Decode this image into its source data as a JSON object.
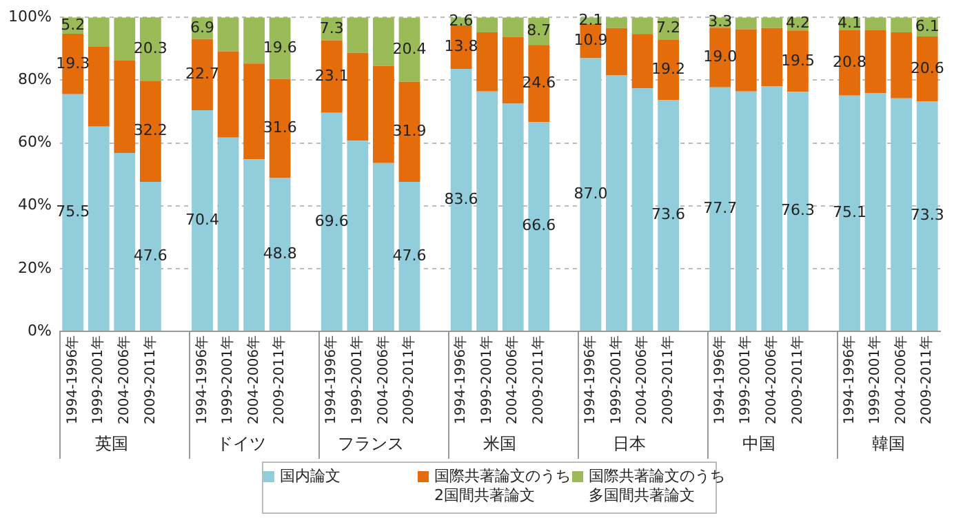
{
  "chart_data": {
    "type": "bar",
    "stacked": true,
    "categories": [
      "1994-1996年",
      "1999-2001年",
      "2004-2006年",
      "2009-2011年",
      null,
      "1994-1996年",
      "1999-2001年",
      "2004-2006年",
      "2009-2011年",
      null,
      "1994-1996年",
      "1999-2001年",
      "2004-2006年",
      "2009-2011年",
      null,
      "1994-1996年",
      "1999-2001年",
      "2004-2006年",
      "2009-2011年",
      null,
      "1994-1996年",
      "1999-2001年",
      "2004-2006年",
      "2009-2011年",
      null,
      "1994-1996年",
      "1999-2001年",
      "2004-2006年",
      "2009-2011年",
      null,
      "1994-1996年",
      "1999-2001年",
      "2004-2006年",
      "2009-2011年"
    ],
    "series": [
      {
        "name": "国内論文",
        "color": "#92cddc",
        "values": [
          75.5,
          65.2,
          56.8,
          47.6,
          null,
          70.4,
          61.7,
          54.8,
          48.8,
          null,
          69.6,
          60.7,
          53.6,
          47.6,
          null,
          83.6,
          76.4,
          72.5,
          66.6,
          null,
          87.0,
          81.6,
          77.4,
          73.6,
          null,
          77.7,
          76.4,
          78.1,
          76.3,
          null,
          75.1,
          75.9,
          74.2,
          73.3
        ],
        "value_labels": [
          "75.5",
          null,
          null,
          "47.6",
          null,
          "70.4",
          null,
          null,
          "48.8",
          null,
          "69.6",
          null,
          null,
          "47.6",
          null,
          "83.6",
          null,
          null,
          "66.6",
          null,
          "87.0",
          null,
          null,
          "73.6",
          null,
          "77.7",
          null,
          null,
          "76.3",
          null,
          "75.1",
          null,
          null,
          "73.3"
        ]
      },
      {
        "name": "国際共著論文のうち2国間共著論文",
        "color": "#e46c0a",
        "values": [
          19.3,
          25.4,
          29.4,
          32.2,
          null,
          22.7,
          27.5,
          30.5,
          31.6,
          null,
          23.1,
          28.0,
          31.0,
          31.9,
          null,
          13.8,
          18.8,
          21.2,
          24.6,
          null,
          10.9,
          15.0,
          17.3,
          19.2,
          null,
          19.0,
          19.8,
          18.5,
          19.5,
          null,
          20.8,
          20.0,
          21.0,
          20.6
        ],
        "value_labels": [
          "19.3",
          null,
          null,
          "32.2",
          null,
          "22.7",
          null,
          null,
          "31.6",
          null,
          "23.1",
          null,
          null,
          "31.9",
          null,
          "13.8",
          null,
          null,
          "24.6",
          null,
          "10.9",
          null,
          null,
          "19.2",
          null,
          "19.0",
          null,
          null,
          "19.5",
          null,
          "20.8",
          null,
          null,
          "20.6"
        ]
      },
      {
        "name": "国際共著論文のうち多国間共著論文",
        "color": "#9bbb59",
        "values": [
          5.2,
          9.4,
          13.8,
          20.3,
          null,
          6.9,
          10.8,
          14.7,
          19.6,
          null,
          7.3,
          11.3,
          15.4,
          20.4,
          null,
          2.6,
          4.8,
          6.3,
          8.7,
          null,
          2.1,
          3.4,
          5.3,
          7.2,
          null,
          3.3,
          3.8,
          3.4,
          4.2,
          null,
          4.1,
          4.1,
          4.8,
          6.1
        ],
        "value_labels": [
          "5.2",
          null,
          null,
          "20.3",
          null,
          "6.9",
          null,
          null,
          "19.6",
          null,
          "7.3",
          null,
          null,
          "20.4",
          null,
          "2.6",
          null,
          null,
          "8.7",
          null,
          "2.1",
          null,
          null,
          "7.2",
          null,
          "3.3",
          null,
          null,
          "4.2",
          null,
          "4.1",
          null,
          null,
          "6.1"
        ]
      }
    ],
    "ylim": [
      0,
      100
    ],
    "yticks": [
      {
        "value": 0,
        "label": "0%"
      },
      {
        "value": 20,
        "label": "20%"
      },
      {
        "value": 40,
        "label": "40%"
      },
      {
        "value": 60,
        "label": "60%"
      },
      {
        "value": 80,
        "label": "80%"
      },
      {
        "value": 100,
        "label": "100%"
      }
    ],
    "grid": "y",
    "legend": "bottom",
    "annotations": [
      "英国",
      "ドイツ",
      "フランス",
      "米国",
      "日本",
      "中国",
      "韓国"
    ]
  }
}
